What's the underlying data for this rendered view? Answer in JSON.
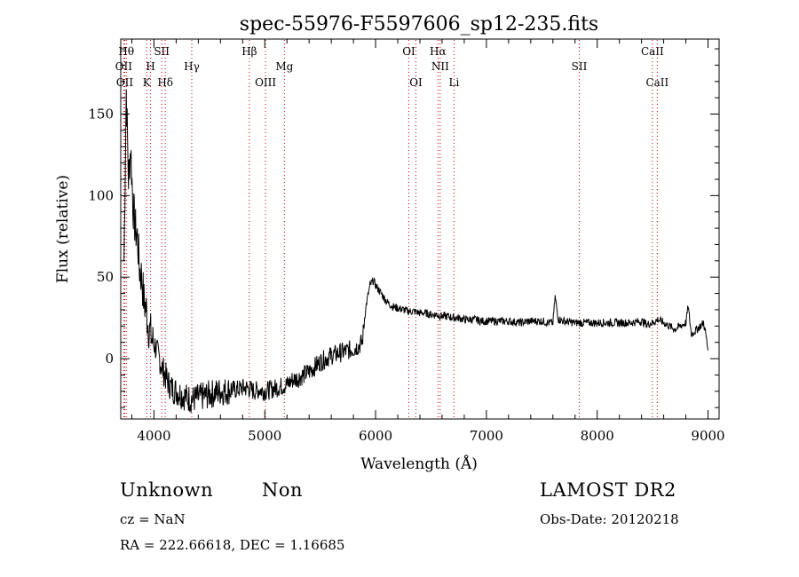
{
  "chart_data": {
    "type": "line",
    "title": "spec-55976-F5597606_sp12-235.fits",
    "xlabel": "Wavelength (Å)",
    "ylabel": "Flux (relative)",
    "xlim": [
      3700,
      9100
    ],
    "ylim": [
      -37,
      196
    ],
    "xticks": [
      4000,
      5000,
      6000,
      7000,
      8000,
      9000
    ],
    "yticks": [
      0,
      50,
      100,
      150
    ],
    "grid": false,
    "line_color": "#000000",
    "marker_color": "#cc0000",
    "series": [
      {
        "x": [
          3730,
          3750,
          3770,
          3790,
          3810,
          3830,
          3850,
          3870,
          3890,
          3910,
          3930,
          3950,
          3970,
          3990,
          4010,
          4030,
          4050,
          4070,
          4100,
          4130,
          4160,
          4200,
          4250,
          4300,
          4350,
          4400,
          4450,
          4500,
          4550,
          4600,
          4650,
          4700,
          4750,
          4800,
          4850,
          4900,
          4950,
          5000,
          5050,
          5100,
          5150,
          5200,
          5250,
          5300,
          5350,
          5400,
          5450,
          5500,
          5550,
          5600,
          5650,
          5700,
          5750,
          5800,
          5850,
          5880,
          5900,
          5920,
          5950,
          5980,
          6000,
          6050,
          6100,
          6150,
          6200,
          6250,
          6300,
          6350,
          6400,
          6450,
          6500,
          6550,
          6600,
          6650,
          6700,
          6750,
          6800,
          6850,
          6900,
          6950,
          7000,
          7100,
          7200,
          7300,
          7400,
          7500,
          7560,
          7600,
          7620,
          7650,
          7700,
          7800,
          7900,
          8000,
          8100,
          8200,
          8300,
          8400,
          8450,
          8500,
          8550,
          8600,
          8650,
          8700,
          8750,
          8800,
          8820,
          8850,
          8900,
          8930,
          8960,
          8980,
          9000
        ],
        "y": [
          60,
          165,
          110,
          130,
          95,
          80,
          75,
          55,
          50,
          35,
          30,
          20,
          15,
          10,
          8,
          3,
          0,
          -5,
          -10,
          -15,
          -18,
          -20,
          -22,
          -24,
          -25,
          -24,
          -23,
          -22,
          -21,
          -20,
          -20,
          -19,
          -19,
          -18,
          -18,
          -20,
          -19,
          -20,
          -19,
          -18,
          -17,
          -16,
          -13,
          -12,
          -10,
          -8,
          -5,
          -2,
          0,
          2,
          3,
          4,
          5,
          6,
          8,
          10,
          25,
          35,
          45,
          48,
          45,
          40,
          35,
          32,
          31,
          30,
          29,
          29,
          28,
          28,
          27,
          27,
          26,
          26,
          25,
          25,
          24,
          24,
          24,
          23,
          23,
          23,
          23,
          22,
          23,
          23,
          22,
          22,
          38,
          24,
          23,
          22,
          22,
          22,
          22,
          22,
          22,
          23,
          21,
          22,
          24,
          22,
          20,
          18,
          20,
          22,
          32,
          15,
          18,
          20,
          22,
          15,
          5
        ]
      }
    ],
    "line_markers": [
      {
        "x": 3727,
        "label": "OII",
        "row": 2
      },
      {
        "x": 3736,
        "label": "OII",
        "row": 3
      },
      {
        "x": 3750,
        "label": "Hθ",
        "row": 1
      },
      {
        "x": 3934,
        "label": "K",
        "row": 3
      },
      {
        "x": 3969,
        "label": "H",
        "row": 2
      },
      {
        "x": 4070,
        "label": "SII",
        "row": 1
      },
      {
        "x": 4102,
        "label": "Hδ",
        "row": 3
      },
      {
        "x": 4341,
        "label": "Hγ",
        "row": 2
      },
      {
        "x": 4861,
        "label": "Hβ",
        "row": 1
      },
      {
        "x": 5007,
        "label": "OIII",
        "row": 3
      },
      {
        "x": 5177,
        "label": "Mg",
        "row": 2
      },
      {
        "x": 6300,
        "label": "OI",
        "row": 1
      },
      {
        "x": 6364,
        "label": "OI",
        "row": 3
      },
      {
        "x": 6563,
        "label": "Hα",
        "row": 1
      },
      {
        "x": 6583,
        "label": "NII",
        "row": 2
      },
      {
        "x": 6708,
        "label": "Li",
        "row": 3
      },
      {
        "x": 7838,
        "label": "SII",
        "row": 2
      },
      {
        "x": 8498,
        "label": "CaII",
        "row": 1
      },
      {
        "x": 8542,
        "label": "CaII",
        "row": 3
      }
    ]
  },
  "info": {
    "class": "Unknown",
    "subclass": "Non",
    "survey": "LAMOST DR2",
    "cz": "cz = NaN",
    "obs_date": "Obs-Date: 20120218",
    "coords": "RA = 222.66618, DEC =   1.16685"
  }
}
